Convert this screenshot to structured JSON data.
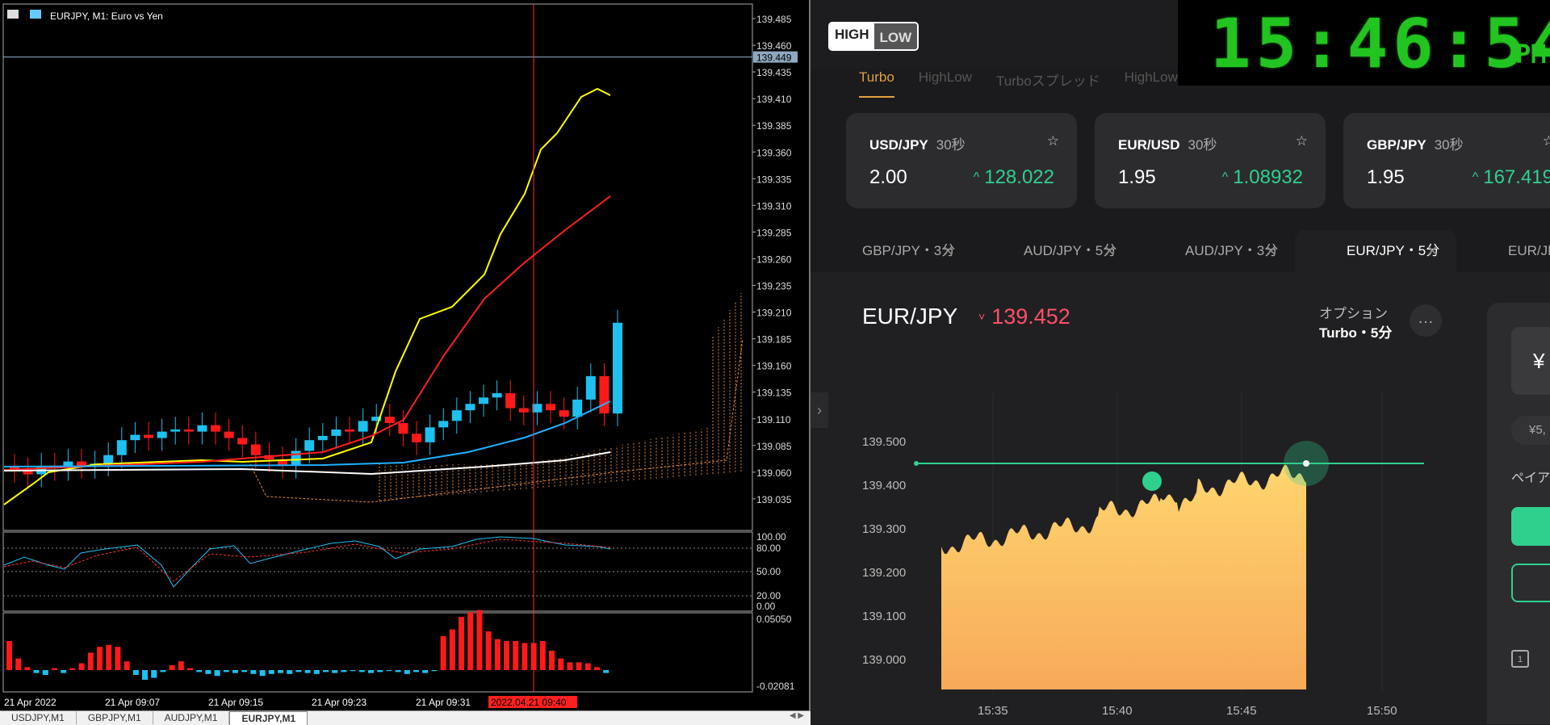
{
  "mt": {
    "title": "EURJPY, M1:  Euro vs Yen",
    "price_scale": [
      "139.485",
      "139.460",
      "139.435",
      "139.410",
      "139.385",
      "139.360",
      "139.335",
      "139.310",
      "139.285",
      "139.260",
      "139.235",
      "139.210",
      "139.185",
      "139.160",
      "139.135",
      "139.110",
      "139.085",
      "139.060",
      "139.035"
    ],
    "current_price": "139.449",
    "stoch_scale": [
      "100.00",
      "80.00",
      "50.00",
      "20.00",
      "0.00"
    ],
    "macd_scale": [
      "0.05050",
      "-0.02081"
    ],
    "time_labels": [
      "21 Apr 2022",
      "21 Apr 09:07",
      "21 Apr 09:15",
      "21 Apr 09:23",
      "21 Apr 09:31"
    ],
    "cursor_time": "2022.04.21 09:40",
    "tabs": [
      "USDJPY,M1",
      "GBPJPY,M1",
      "AUDJPY,M1",
      "EURJPY,M1"
    ],
    "active_tab": 3,
    "colors": {
      "bull": "#1ec0f0",
      "bear": "#ff1a1a",
      "ma_fast": "#ffff00",
      "ma_mid": "#ff2020",
      "ma_slow": "#20b0ff",
      "ma_long": "#ffffff",
      "cloud": "#e08a3c",
      "cursor": "#ff3030"
    }
  },
  "hl": {
    "logo_high": "HIGH",
    "logo_low": "LOW",
    "nav": [
      "Turbo",
      "HighLow",
      "Turboスプレッド",
      "HighLow"
    ],
    "cards": [
      {
        "pair": "USD/JPY",
        "dur": "30秒",
        "payout": "2.00",
        "rate": "128.022"
      },
      {
        "pair": "EUR/USD",
        "dur": "30秒",
        "payout": "1.95",
        "rate": "1.08932"
      },
      {
        "pair": "GBP/JPY",
        "dur": "30秒",
        "payout": "1.95",
        "rate": "167.419"
      }
    ],
    "tabs": [
      "GBP/JPY・3分",
      "AUD/JPY・5分",
      "AUD/JPY・3分",
      "EUR/JPY・5分",
      "EUR/JPY"
    ],
    "active_tab": 3,
    "asset": "EUR/JPY",
    "price": "139.452",
    "option_label": "オプション",
    "option_value": "Turbo・5分",
    "more": "…",
    "chart_y_labels": [
      "139.500",
      "139.400",
      "139.300",
      "139.200",
      "139.100",
      "139.000"
    ],
    "chart_x_labels": [
      "15:35",
      "15:40",
      "15:45",
      "15:50"
    ],
    "amount": "¥",
    "amount_sub": "¥5,",
    "payout_label": "ペイア",
    "colors": {
      "up": "#2fd08e",
      "down": "#ff4f6a",
      "area_top": "#ffd56e",
      "area_bottom": "#f7a95a"
    }
  },
  "clock": {
    "time": "15:46:54",
    "ampm": "PM"
  }
}
